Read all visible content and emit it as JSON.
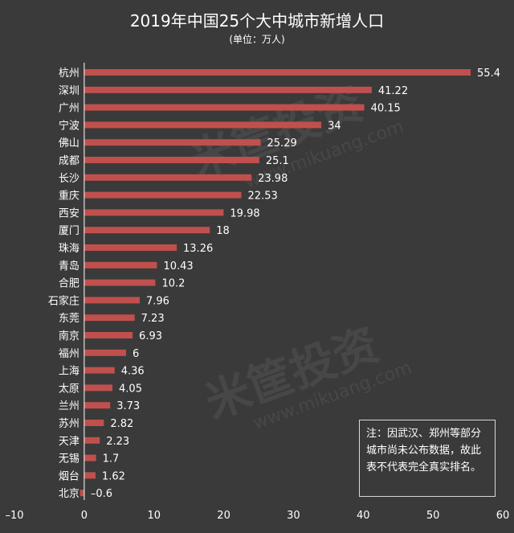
{
  "chart_data": {
    "type": "bar",
    "orientation": "horizontal",
    "title": "2019年中国25个大中城市新增人口",
    "subtitle": "(单位：万人)",
    "categories": [
      "杭州",
      "深圳",
      "广州",
      "宁波",
      "佛山",
      "成都",
      "长沙",
      "重庆",
      "西安",
      "厦门",
      "珠海",
      "青岛",
      "合肥",
      "石家庄",
      "东莞",
      "南京",
      "福州",
      "上海",
      "太原",
      "兰州",
      "苏州",
      "天津",
      "无锡",
      "烟台",
      "北京"
    ],
    "values": [
      55.4,
      41.22,
      40.15,
      34,
      25.29,
      25.1,
      23.98,
      22.53,
      19.98,
      18,
      13.26,
      10.43,
      10.2,
      7.96,
      7.23,
      6.93,
      6,
      4.36,
      4.05,
      3.73,
      2.82,
      2.23,
      1.7,
      1.62,
      -0.6
    ],
    "value_labels": [
      "55.4",
      "41.22",
      "40.15",
      "34",
      "25.29",
      "25.1",
      "23.98",
      "22.53",
      "19.98",
      "18",
      "13.26",
      "10.43",
      "10.2",
      "7.96",
      "7.23",
      "6.93",
      "6",
      "4.36",
      "4.05",
      "3.73",
      "2.82",
      "2.23",
      "1.7",
      "1.62",
      "–0.6"
    ],
    "xlim": [
      -10,
      60
    ],
    "xticks": [
      -10,
      0,
      10,
      20,
      30,
      40,
      50,
      60
    ],
    "xtick_labels": [
      "–10",
      "0",
      "10",
      "20",
      "30",
      "40",
      "50",
      "60"
    ],
    "grid": false,
    "bar_color": "#c0504d"
  },
  "note": "注：因武汉、郑州等部分城市尚未公布数据，故此表不代表完全真实排名。",
  "watermark": {
    "brand": "米筐投资",
    "url": "www.mikuang.com"
  },
  "colors": {
    "background": "#3a3a3a",
    "bar": "#c0504d",
    "text": "#ffffff"
  }
}
